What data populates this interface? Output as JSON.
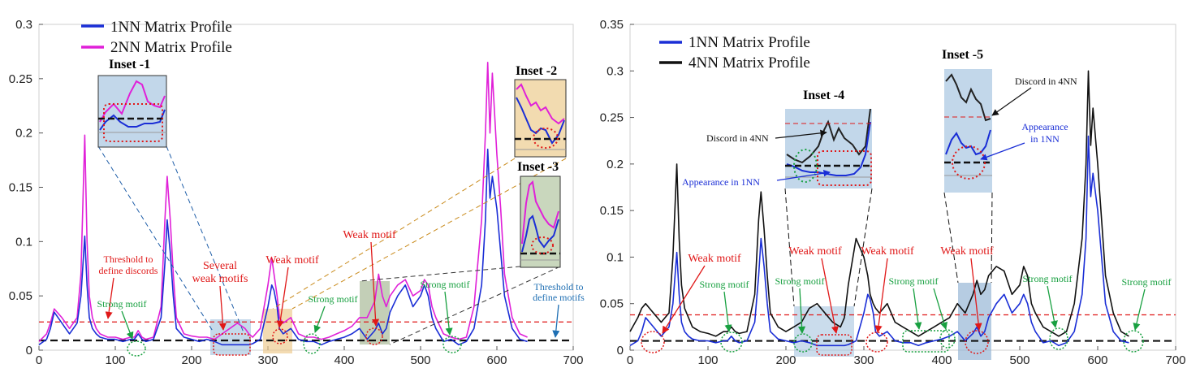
{
  "colors": {
    "nn1": "#1a2ed6",
    "nn2": "#e020d8",
    "nn4": "#111111",
    "threshold_discord": "#e01818",
    "threshold_motif": "#111111",
    "weak": "#e01818",
    "strong": "#18a040",
    "blue_text": "#1f6fb3",
    "inset_blue": "#c2d7ea",
    "inset_orange": "#f2dbb0",
    "inset_green": "#c9d7bd"
  },
  "chart_data": [
    {
      "type": "line",
      "xlim": [
        0,
        700
      ],
      "ylim": [
        0,
        0.3
      ],
      "x_ticks": [
        "0",
        "100",
        "200",
        "300",
        "400",
        "500",
        "600",
        "700"
      ],
      "y_ticks": [
        "0",
        "0.05",
        "0.1",
        "0.15",
        "0.2",
        "0.25",
        "0.3"
      ],
      "legend_position": "top-left",
      "series": [
        {
          "name": "1NN Matrix Profile",
          "color": "#1a2ed6",
          "x": [
            0,
            10,
            15,
            20,
            30,
            35,
            40,
            45,
            50,
            55,
            60,
            63,
            66,
            70,
            75,
            80,
            90,
            100,
            110,
            120,
            125,
            130,
            135,
            140,
            150,
            160,
            165,
            168,
            172,
            176,
            180,
            190,
            200,
            210,
            220,
            230,
            240,
            250,
            260,
            270,
            275,
            280,
            290,
            300,
            305,
            308,
            312,
            315,
            320,
            330,
            340,
            350,
            360,
            370,
            380,
            390,
            400,
            410,
            420,
            430,
            440,
            445,
            450,
            455,
            460,
            470,
            480,
            490,
            500,
            505,
            510,
            515,
            520,
            530,
            540,
            550,
            560,
            570,
            580,
            585,
            588,
            591,
            594,
            600,
            605,
            610,
            620,
            630,
            640
          ],
          "y": [
            0.005,
            0.01,
            0.02,
            0.035,
            0.025,
            0.02,
            0.015,
            0.02,
            0.025,
            0.05,
            0.105,
            0.06,
            0.03,
            0.02,
            0.015,
            0.012,
            0.01,
            0.01,
            0.008,
            0.01,
            0.01,
            0.015,
            0.01,
            0.008,
            0.01,
            0.03,
            0.08,
            0.12,
            0.09,
            0.05,
            0.02,
            0.012,
            0.01,
            0.008,
            0.01,
            0.008,
            0.005,
            0.005,
            0.005,
            0.005,
            0.005,
            0.006,
            0.01,
            0.04,
            0.06,
            0.055,
            0.04,
            0.02,
            0.015,
            0.02,
            0.01,
            0.008,
            0.008,
            0.005,
            0.008,
            0.01,
            0.012,
            0.015,
            0.02,
            0.01,
            0.018,
            0.025,
            0.015,
            0.02,
            0.035,
            0.05,
            0.06,
            0.04,
            0.05,
            0.06,
            0.05,
            0.03,
            0.02,
            0.008,
            0.01,
            0.005,
            0.008,
            0.02,
            0.06,
            0.12,
            0.185,
            0.14,
            0.16,
            0.13,
            0.09,
            0.05,
            0.02,
            0.01,
            0.008
          ]
        },
        {
          "name": "2NN Matrix Profile",
          "color": "#e020d8",
          "x": [
            0,
            10,
            15,
            20,
            30,
            35,
            40,
            45,
            50,
            55,
            60,
            63,
            66,
            70,
            75,
            80,
            90,
            100,
            110,
            120,
            125,
            130,
            135,
            140,
            150,
            160,
            165,
            168,
            172,
            176,
            180,
            190,
            200,
            210,
            220,
            230,
            240,
            250,
            260,
            270,
            275,
            280,
            290,
            300,
            305,
            308,
            312,
            315,
            320,
            330,
            340,
            350,
            360,
            370,
            380,
            390,
            400,
            410,
            420,
            430,
            440,
            445,
            450,
            455,
            460,
            470,
            480,
            490,
            500,
            505,
            510,
            515,
            520,
            530,
            540,
            550,
            560,
            570,
            580,
            585,
            588,
            591,
            594,
            600,
            605,
            610,
            620,
            630,
            640
          ],
          "y": [
            0.008,
            0.015,
            0.025,
            0.038,
            0.03,
            0.025,
            0.02,
            0.025,
            0.03,
            0.07,
            0.198,
            0.1,
            0.05,
            0.03,
            0.02,
            0.015,
            0.012,
            0.012,
            0.01,
            0.012,
            0.012,
            0.018,
            0.012,
            0.01,
            0.012,
            0.04,
            0.12,
            0.16,
            0.12,
            0.07,
            0.03,
            0.015,
            0.013,
            0.012,
            0.012,
            0.01,
            0.015,
            0.02,
            0.025,
            0.02,
            0.015,
            0.012,
            0.02,
            0.06,
            0.085,
            0.07,
            0.05,
            0.03,
            0.025,
            0.03,
            0.015,
            0.012,
            0.012,
            0.01,
            0.012,
            0.015,
            0.018,
            0.022,
            0.03,
            0.03,
            0.045,
            0.07,
            0.05,
            0.04,
            0.05,
            0.06,
            0.065,
            0.05,
            0.055,
            0.065,
            0.06,
            0.04,
            0.03,
            0.015,
            0.012,
            0.01,
            0.012,
            0.04,
            0.12,
            0.2,
            0.265,
            0.2,
            0.255,
            0.18,
            0.13,
            0.07,
            0.03,
            0.015,
            0.012
          ]
        }
      ],
      "thresholds": [
        {
          "y": 0.026,
          "style": "dashed",
          "color": "#e01818"
        },
        {
          "y": 0.009,
          "style": "dashed",
          "color": "#111111"
        }
      ]
    },
    {
      "type": "line",
      "xlim": [
        0,
        700
      ],
      "ylim": [
        0,
        0.35
      ],
      "x_ticks": [
        "0",
        "100",
        "200",
        "300",
        "400",
        "500",
        "600",
        "700"
      ],
      "y_ticks": [
        "0",
        "0.05",
        "0.1",
        "0.15",
        "0.2",
        "0.25",
        "0.3",
        "0.35"
      ],
      "legend_position": "top-left",
      "series": [
        {
          "name": "1NN Matrix Profile",
          "color": "#1a2ed6",
          "x": [
            0,
            10,
            15,
            20,
            30,
            35,
            40,
            45,
            50,
            55,
            60,
            63,
            66,
            70,
            75,
            80,
            90,
            100,
            110,
            120,
            125,
            130,
            135,
            140,
            150,
            160,
            165,
            168,
            172,
            176,
            180,
            190,
            200,
            210,
            220,
            230,
            240,
            250,
            260,
            270,
            275,
            280,
            290,
            300,
            305,
            308,
            312,
            315,
            320,
            330,
            340,
            350,
            360,
            370,
            380,
            390,
            400,
            410,
            420,
            430,
            440,
            445,
            450,
            455,
            460,
            470,
            480,
            490,
            500,
            505,
            510,
            515,
            520,
            530,
            540,
            550,
            560,
            570,
            580,
            585,
            588,
            591,
            594,
            600,
            605,
            610,
            620,
            630,
            640
          ],
          "y": [
            0.005,
            0.01,
            0.02,
            0.035,
            0.025,
            0.02,
            0.015,
            0.02,
            0.025,
            0.05,
            0.105,
            0.06,
            0.03,
            0.02,
            0.015,
            0.012,
            0.01,
            0.01,
            0.008,
            0.01,
            0.01,
            0.015,
            0.01,
            0.008,
            0.01,
            0.03,
            0.08,
            0.12,
            0.09,
            0.05,
            0.02,
            0.012,
            0.01,
            0.008,
            0.01,
            0.008,
            0.005,
            0.005,
            0.005,
            0.005,
            0.005,
            0.006,
            0.01,
            0.04,
            0.06,
            0.055,
            0.04,
            0.02,
            0.015,
            0.02,
            0.01,
            0.008,
            0.008,
            0.005,
            0.008,
            0.01,
            0.012,
            0.015,
            0.02,
            0.01,
            0.018,
            0.025,
            0.015,
            0.02,
            0.035,
            0.05,
            0.06,
            0.04,
            0.05,
            0.06,
            0.05,
            0.03,
            0.02,
            0.008,
            0.01,
            0.005,
            0.008,
            0.02,
            0.06,
            0.12,
            0.23,
            0.165,
            0.19,
            0.15,
            0.1,
            0.05,
            0.02,
            0.01,
            0.008
          ]
        },
        {
          "name": "4NN Matrix Profile",
          "color": "#111111",
          "x": [
            0,
            10,
            15,
            20,
            30,
            35,
            40,
            45,
            50,
            55,
            60,
            63,
            66,
            70,
            75,
            80,
            90,
            100,
            110,
            120,
            125,
            130,
            135,
            140,
            150,
            160,
            165,
            168,
            172,
            176,
            180,
            190,
            200,
            210,
            220,
            230,
            240,
            250,
            260,
            270,
            275,
            280,
            290,
            300,
            305,
            308,
            312,
            315,
            320,
            330,
            340,
            350,
            360,
            370,
            380,
            390,
            400,
            410,
            420,
            430,
            440,
            445,
            450,
            455,
            460,
            470,
            480,
            490,
            500,
            505,
            510,
            515,
            520,
            530,
            540,
            550,
            560,
            570,
            580,
            585,
            588,
            591,
            594,
            600,
            605,
            610,
            620,
            630,
            640
          ],
          "y": [
            0.02,
            0.035,
            0.045,
            0.05,
            0.04,
            0.035,
            0.03,
            0.035,
            0.04,
            0.1,
            0.2,
            0.12,
            0.07,
            0.045,
            0.035,
            0.025,
            0.02,
            0.018,
            0.015,
            0.02,
            0.02,
            0.025,
            0.02,
            0.018,
            0.02,
            0.06,
            0.14,
            0.17,
            0.13,
            0.08,
            0.04,
            0.025,
            0.02,
            0.025,
            0.03,
            0.045,
            0.05,
            0.04,
            0.03,
            0.025,
            0.035,
            0.07,
            0.12,
            0.1,
            0.08,
            0.06,
            0.05,
            0.045,
            0.04,
            0.05,
            0.03,
            0.025,
            0.02,
            0.015,
            0.02,
            0.025,
            0.03,
            0.035,
            0.05,
            0.04,
            0.06,
            0.075,
            0.06,
            0.065,
            0.08,
            0.09,
            0.085,
            0.06,
            0.07,
            0.09,
            0.08,
            0.05,
            0.04,
            0.025,
            0.02,
            0.015,
            0.02,
            0.05,
            0.12,
            0.2,
            0.3,
            0.22,
            0.26,
            0.2,
            0.14,
            0.08,
            0.04,
            0.02,
            0.015
          ]
        }
      ],
      "thresholds": [
        {
          "y": 0.038,
          "style": "dashed",
          "color": "#e01818"
        },
        {
          "y": 0.01,
          "style": "dashed",
          "color": "#111111"
        }
      ]
    }
  ],
  "left": {
    "legend": [
      "1NN Matrix Profile",
      "2NN Matrix Profile"
    ],
    "inset_titles": [
      "Inset -1",
      "Inset -2",
      "Inset -3"
    ],
    "annotations": {
      "threshold_discords": [
        "Threshold to",
        "define discords"
      ],
      "strong_motif_1": "Strong motif",
      "several_weak": [
        "Several",
        "weak motifs"
      ],
      "weak_motif_1": "Weak motif",
      "strong_motif_2": "Strong motif",
      "weak_motif_2": "Weak motif",
      "strong_motif_3": "Strong motif",
      "threshold_motifs": [
        "Threshold to",
        "define motifs"
      ]
    }
  },
  "right": {
    "legend": [
      "1NN Matrix Profile",
      "4NN Matrix Profile"
    ],
    "inset_titles": [
      "Inset -4",
      "Inset -5"
    ],
    "annotations": {
      "discord_4nn_a": "Discord in 4NN",
      "appearance_1nn_a": "Appearance in 1NN",
      "discord_4nn_b": "Discord in 4NN",
      "appearance_1nn_b": [
        "Appearance",
        "in 1NN"
      ],
      "weak_motif_1": "Weak motif",
      "weak_motif_2": "Weak motif",
      "weak_motif_3": "Weak motif",
      "weak_motif_4": "Weak motif",
      "strong_motif_1": "Strong motif",
      "strong_motif_2": "Strong motif",
      "strong_motif_3": "Strong motif",
      "strong_motif_4": "Strong motif",
      "strong_motif_5": "Strong motif"
    }
  }
}
